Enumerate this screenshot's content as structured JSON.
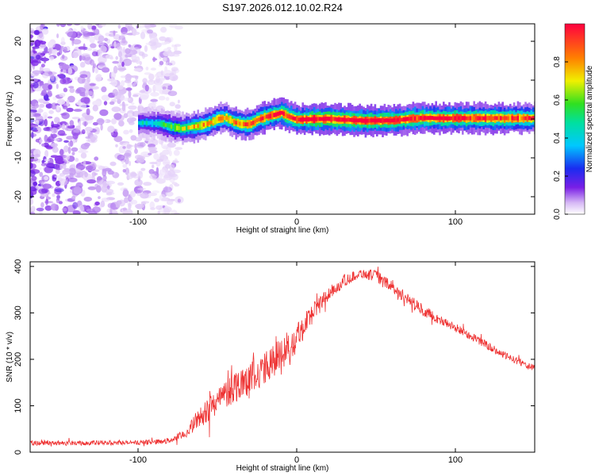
{
  "title": "S197.2026.012.10.02.R24",
  "chart_data": [
    {
      "type": "heatmap",
      "xlabel": "Height of straight line (km)",
      "ylabel": "Frequency (Hz)",
      "xlim": [
        -168,
        150
      ],
      "ylim": [
        -24.5,
        24.5
      ],
      "xticks": [
        -100,
        0,
        100
      ],
      "yticks": [
        -20,
        -10,
        0,
        10,
        20
      ],
      "colorbar": {
        "label": "Normalized spectral amplitude",
        "range": [
          0,
          1
        ],
        "ticks": [
          0.0,
          0.2,
          0.4,
          0.6,
          0.8
        ]
      },
      "ridge": {
        "x": [
          -100,
          -92,
          -85,
          -78,
          -72,
          -66,
          -60,
          -55,
          -50,
          -45,
          -40,
          -35,
          -30,
          -25,
          -20,
          -15,
          -10,
          -5,
          0,
          10,
          20,
          30,
          40,
          50,
          60,
          70,
          80,
          90,
          100,
          110,
          120,
          130,
          140,
          150
        ],
        "freq": [
          -1,
          -1,
          -1.3,
          -2.2,
          -2.5,
          -2,
          -1.6,
          -1,
          0,
          0.3,
          -0.8,
          -1.3,
          -1.4,
          -0.2,
          0.5,
          1,
          1.6,
          0.5,
          -0.2,
          0,
          0,
          -0.2,
          -0.4,
          -0.4,
          -0.4,
          0,
          0.3,
          0.2,
          0.2,
          0.2,
          0.2,
          0.2,
          0.2,
          0.2
        ],
        "amplitude": [
          0.3,
          0.3,
          0.4,
          0.5,
          0.55,
          0.6,
          0.65,
          0.7,
          0.7,
          0.7,
          0.75,
          0.75,
          0.8,
          0.8,
          0.85,
          0.85,
          0.9,
          0.9,
          0.9,
          0.95,
          0.95,
          0.95,
          0.95,
          0.95,
          0.9,
          0.9,
          0.9,
          0.9,
          0.9,
          0.85,
          0.85,
          0.85,
          0.8,
          0.8
        ]
      },
      "noise_region_x": [
        -168,
        -82
      ]
    },
    {
      "type": "line",
      "xlabel": "Height of straight line (km)",
      "ylabel": "SNR (10 * v/v)",
      "xlim": [
        -168,
        150
      ],
      "ylim": [
        0,
        410
      ],
      "xticks": [
        -100,
        0,
        100
      ],
      "yticks": [
        0,
        100,
        200,
        300,
        400
      ],
      "series": [
        {
          "name": "SNR",
          "color": "#ee3333",
          "x": [
            -168,
            -150,
            -130,
            -110,
            -90,
            -80,
            -70,
            -60,
            -50,
            -40,
            -30,
            -20,
            -10,
            0,
            10,
            20,
            30,
            40,
            50,
            60,
            70,
            80,
            90,
            100,
            110,
            120,
            130,
            140,
            150
          ],
          "y": [
            20,
            20,
            20,
            20,
            22,
            25,
            40,
            80,
            110,
            140,
            160,
            180,
            210,
            250,
            300,
            340,
            370,
            385,
            380,
            355,
            330,
            305,
            285,
            268,
            250,
            230,
            210,
            195,
            180
          ],
          "spread": [
            10,
            10,
            10,
            10,
            10,
            12,
            20,
            45,
            60,
            70,
            75,
            70,
            80,
            70,
            45,
            30,
            25,
            20,
            25,
            25,
            25,
            25,
            20,
            20,
            18,
            18,
            15,
            15,
            15
          ]
        }
      ]
    }
  ]
}
